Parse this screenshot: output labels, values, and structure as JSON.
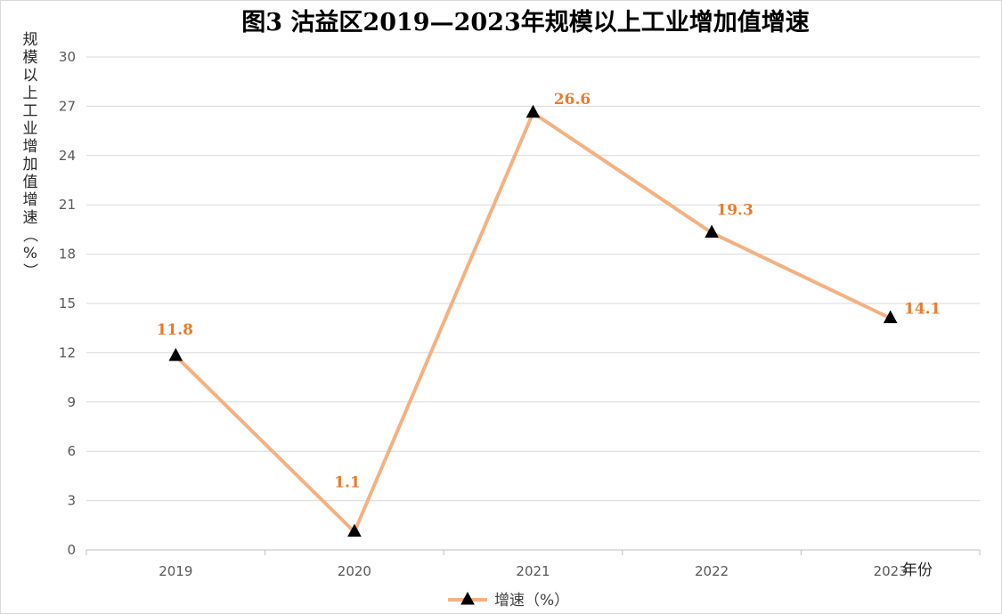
{
  "chart_data": {
    "type": "line",
    "title": "图3 沽益区2019—2023年规模以上工业增加值增速",
    "ylabel": "规模以上工业增加值增速（%）",
    "xlabel": "年份",
    "categories": [
      "2019",
      "2020",
      "2021",
      "2022",
      "2023"
    ],
    "series": [
      {
        "name": "增速（%）",
        "values": [
          11.8,
          1.1,
          26.6,
          19.3,
          14.1
        ],
        "color": "#f4b183",
        "marker": "triangle"
      }
    ],
    "data_labels": [
      "11.8",
      "1.1",
      "26.6",
      "19.3",
      "14.1"
    ],
    "data_label_color": "#e97b2c",
    "ylim": [
      0,
      30
    ],
    "yticks": [
      0,
      3,
      6,
      9,
      12,
      15,
      18,
      21,
      24,
      27,
      30
    ],
    "grid": true,
    "legend_position": "bottom"
  }
}
